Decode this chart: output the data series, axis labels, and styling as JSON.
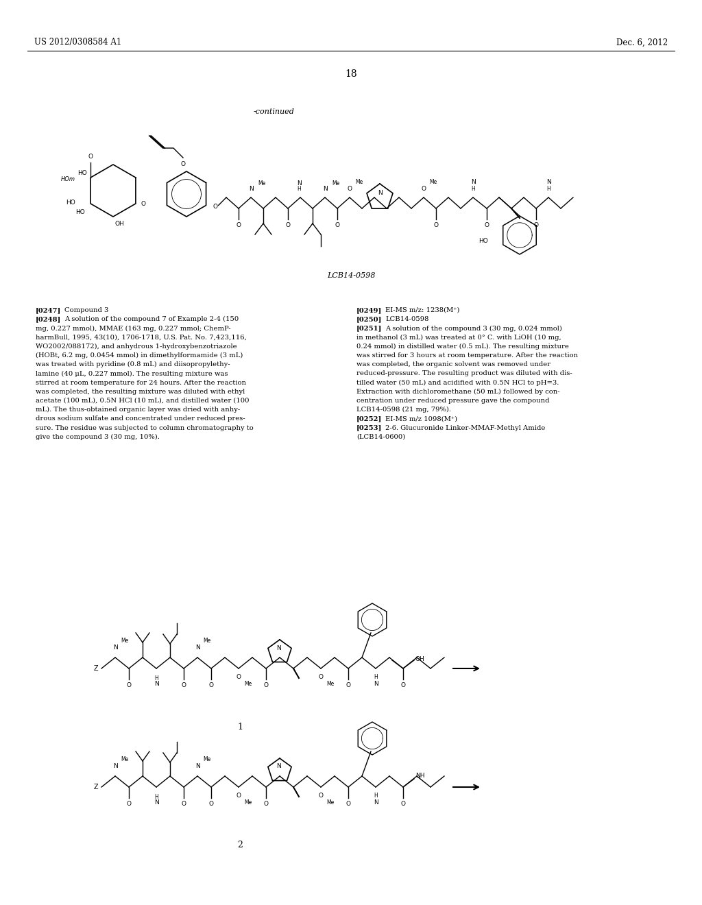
{
  "page_header_left": "US 2012/0308584 A1",
  "page_header_right": "Dec. 6, 2012",
  "page_number": "18",
  "continued_label": "-continued",
  "compound_label_top": "LCB14-0598",
  "bg_color": "#ffffff",
  "text_color": "#000000",
  "header_font_size": 8.5,
  "body_font_size": 7.2,
  "page_num_font_size": 10,
  "left_column": [
    {
      "tag": "[0247]",
      "text": "Compound 3"
    },
    {
      "tag": "[0248]",
      "text": "A solution of the compound 7 of Example 2-4 (150\nmg, 0.227 mmol), MMAE (163 mg, 0.227 mmol; ChemP-\nharmBull, 1995, 43(10), 1706-1718, U.S. Pat. No. 7,423,116,\nWO2002/088172), and anhydrous 1-hydroxybenzotriazole\n(HOBt, 6.2 mg, 0.0454 mmol) in dimethylformamide (3 mL)\nwas treated with pyridine (0.8 mL) and diisopropylethy-\nlamine (40 μL, 0.227 mmol). The resulting mixture was\nstirred at room temperature for 24 hours. After the reaction\nwas completed, the resulting mixture was diluted with ethyl\nacetate (100 mL), 0.5N HCl (10 mL), and distilled water (100\nmL). The thus-obtained organic layer was dried with anhy-\ndrous sodium sulfate and concentrated under reduced pres-\nsure. The residue was subjected to column chromatography to\ngive the compound 3 (30 mg, 10%)."
    }
  ],
  "right_column": [
    {
      "tag": "[0249]",
      "text": "EI-MS m/z: 1238(M⁺)"
    },
    {
      "tag": "[0250]",
      "text": "LCB14-0598"
    },
    {
      "tag": "[0251]",
      "text": "A solution of the compound 3 (30 mg, 0.024 mmol)\nin methanol (3 mL) was treated at 0° C. with LiOH (10 mg,\n0.24 mmol) in distilled water (0.5 mL). The resulting mixture\nwas stirred for 3 hours at room temperature. After the reaction\nwas completed, the organic solvent was removed under\nreduced-pressure. The resulting product was diluted with dis-\ntilled water (50 mL) and acidified with 0.5N HCl to pH=3.\nExtraction with dichloromethane (50 mL) followed by con-\ncentration under reduced pressure gave the compound\nLCB14-0598 (21 mg, 79%)."
    },
    {
      "tag": "[0252]",
      "text": "EI-MS m/z 1098(M⁺)"
    },
    {
      "tag": "[0253]",
      "text": "2-6. Glucuronide Linker-MMAF-Methyl Amide\n(LCB14-0600)"
    }
  ],
  "diagram1_label": "1",
  "diagram2_label": "2"
}
